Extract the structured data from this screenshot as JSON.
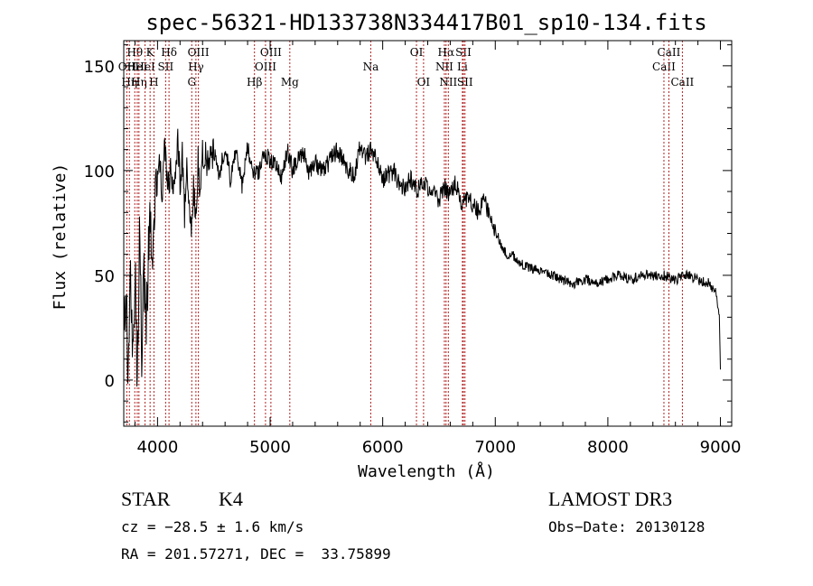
{
  "chart_data": {
    "type": "line",
    "title": "spec-56321-HD133738N334417B01_sp10-134.fits",
    "xlabel": "Wavelength (Å)",
    "ylabel": "Flux (relative)",
    "xlim": [
      3700,
      9100
    ],
    "ylim": [
      -22,
      162
    ],
    "xticks": [
      4000,
      5000,
      6000,
      7000,
      8000,
      9000
    ],
    "yticks": [
      0,
      50,
      100,
      150
    ],
    "series": [
      {
        "name": "flux",
        "x": [
          3700,
          3720,
          3740,
          3760,
          3780,
          3800,
          3820,
          3840,
          3860,
          3880,
          3900,
          3920,
          3940,
          3960,
          3980,
          4000,
          4020,
          4040,
          4060,
          4080,
          4100,
          4120,
          4140,
          4160,
          4180,
          4200,
          4220,
          4240,
          4260,
          4280,
          4300,
          4320,
          4340,
          4360,
          4380,
          4400,
          4450,
          4500,
          4550,
          4600,
          4650,
          4700,
          4750,
          4800,
          4850,
          4900,
          4950,
          5000,
          5050,
          5100,
          5150,
          5200,
          5250,
          5300,
          5350,
          5400,
          5450,
          5500,
          5550,
          5600,
          5650,
          5700,
          5750,
          5800,
          5850,
          5900,
          5950,
          6000,
          6050,
          6100,
          6150,
          6200,
          6250,
          6300,
          6350,
          6400,
          6450,
          6500,
          6550,
          6600,
          6650,
          6700,
          6750,
          6800,
          6850,
          6900,
          6950,
          7000,
          7050,
          7100,
          7150,
          7200,
          7300,
          7400,
          7500,
          7600,
          7700,
          7800,
          7900,
          8000,
          8100,
          8200,
          8300,
          8400,
          8500,
          8600,
          8700,
          8800,
          8900,
          8960,
          8990,
          9000
        ],
        "values": [
          20,
          40,
          -5,
          55,
          10,
          60,
          0,
          70,
          15,
          50,
          30,
          60,
          80,
          50,
          100,
          95,
          105,
          90,
          110,
          100,
          90,
          105,
          85,
          100,
          112,
          95,
          108,
          80,
          100,
          85,
          70,
          90,
          75,
          105,
          88,
          110,
          102,
          108,
          98,
          112,
          95,
          110,
          92,
          112,
          100,
          98,
          108,
          105,
          102,
          96,
          110,
          100,
          106,
          108,
          98,
          104,
          100,
          102,
          106,
          110,
          104,
          100,
          98,
          112,
          106,
          110,
          104,
          96,
          98,
          100,
          93,
          92,
          96,
          90,
          94,
          92,
          90,
          86,
          92,
          88,
          94,
          85,
          86,
          84,
          80,
          86,
          78,
          72,
          64,
          60,
          60,
          56,
          54,
          52,
          50,
          48,
          46,
          48,
          46,
          48,
          50,
          48,
          50,
          50,
          50,
          48,
          50,
          48,
          46,
          42,
          30,
          5
        ]
      }
    ],
    "lines": [
      {
        "wl": 3727,
        "label": "OII",
        "row": 2
      },
      {
        "wl": 3750,
        "label": "Hη",
        "row": 3
      },
      {
        "wl": 3798,
        "label": "Hθ",
        "row": 1
      },
      {
        "wl": 3820,
        "label": "HeI",
        "row": 2
      },
      {
        "wl": 3835,
        "label": "Hη",
        "row": 3
      },
      {
        "wl": 3889,
        "label": "HeI",
        "row": 2
      },
      {
        "wl": 3934,
        "label": "K",
        "row": 1
      },
      {
        "wl": 3968,
        "label": "H",
        "row": 3
      },
      {
        "wl": 4072,
        "label": "SII",
        "row": 2
      },
      {
        "wl": 4102,
        "label": "Hδ",
        "row": 1
      },
      {
        "wl": 4304,
        "label": "G",
        "row": 3
      },
      {
        "wl": 4341,
        "label": "Hγ",
        "row": 2
      },
      {
        "wl": 4363,
        "label": "OIII",
        "row": 1
      },
      {
        "wl": 4861,
        "label": "Hβ",
        "row": 3
      },
      {
        "wl": 4959,
        "label": "OIII",
        "row": 2
      },
      {
        "wl": 5007,
        "label": "OIII",
        "row": 1
      },
      {
        "wl": 5175,
        "label": "Mg",
        "row": 3
      },
      {
        "wl": 5894,
        "label": "Na",
        "row": 2
      },
      {
        "wl": 6300,
        "label": "OI",
        "row": 1
      },
      {
        "wl": 6363,
        "label": "OI",
        "row": 3
      },
      {
        "wl": 6548,
        "label": "NII",
        "row": 2
      },
      {
        "wl": 6563,
        "label": "Hα",
        "row": 1
      },
      {
        "wl": 6583,
        "label": "NII",
        "row": 3
      },
      {
        "wl": 6708,
        "label": "Li",
        "row": 2
      },
      {
        "wl": 6717,
        "label": "SII",
        "row": 1
      },
      {
        "wl": 6731,
        "label": "SII",
        "row": 3
      },
      {
        "wl": 8498,
        "label": "CaII",
        "row": 2
      },
      {
        "wl": 8542,
        "label": "CaII",
        "row": 1
      },
      {
        "wl": 8662,
        "label": "CaII",
        "row": 3
      }
    ],
    "line_color": "#b22222"
  },
  "info": {
    "class": "STAR",
    "subclass": "K4",
    "survey": "LAMOST DR3",
    "cz": "cz = −28.5 ± 1.6 km/s",
    "obs_date": "Obs−Date: 20130128",
    "coords": "RA = 201.57271, DEC =  33.75899"
  }
}
